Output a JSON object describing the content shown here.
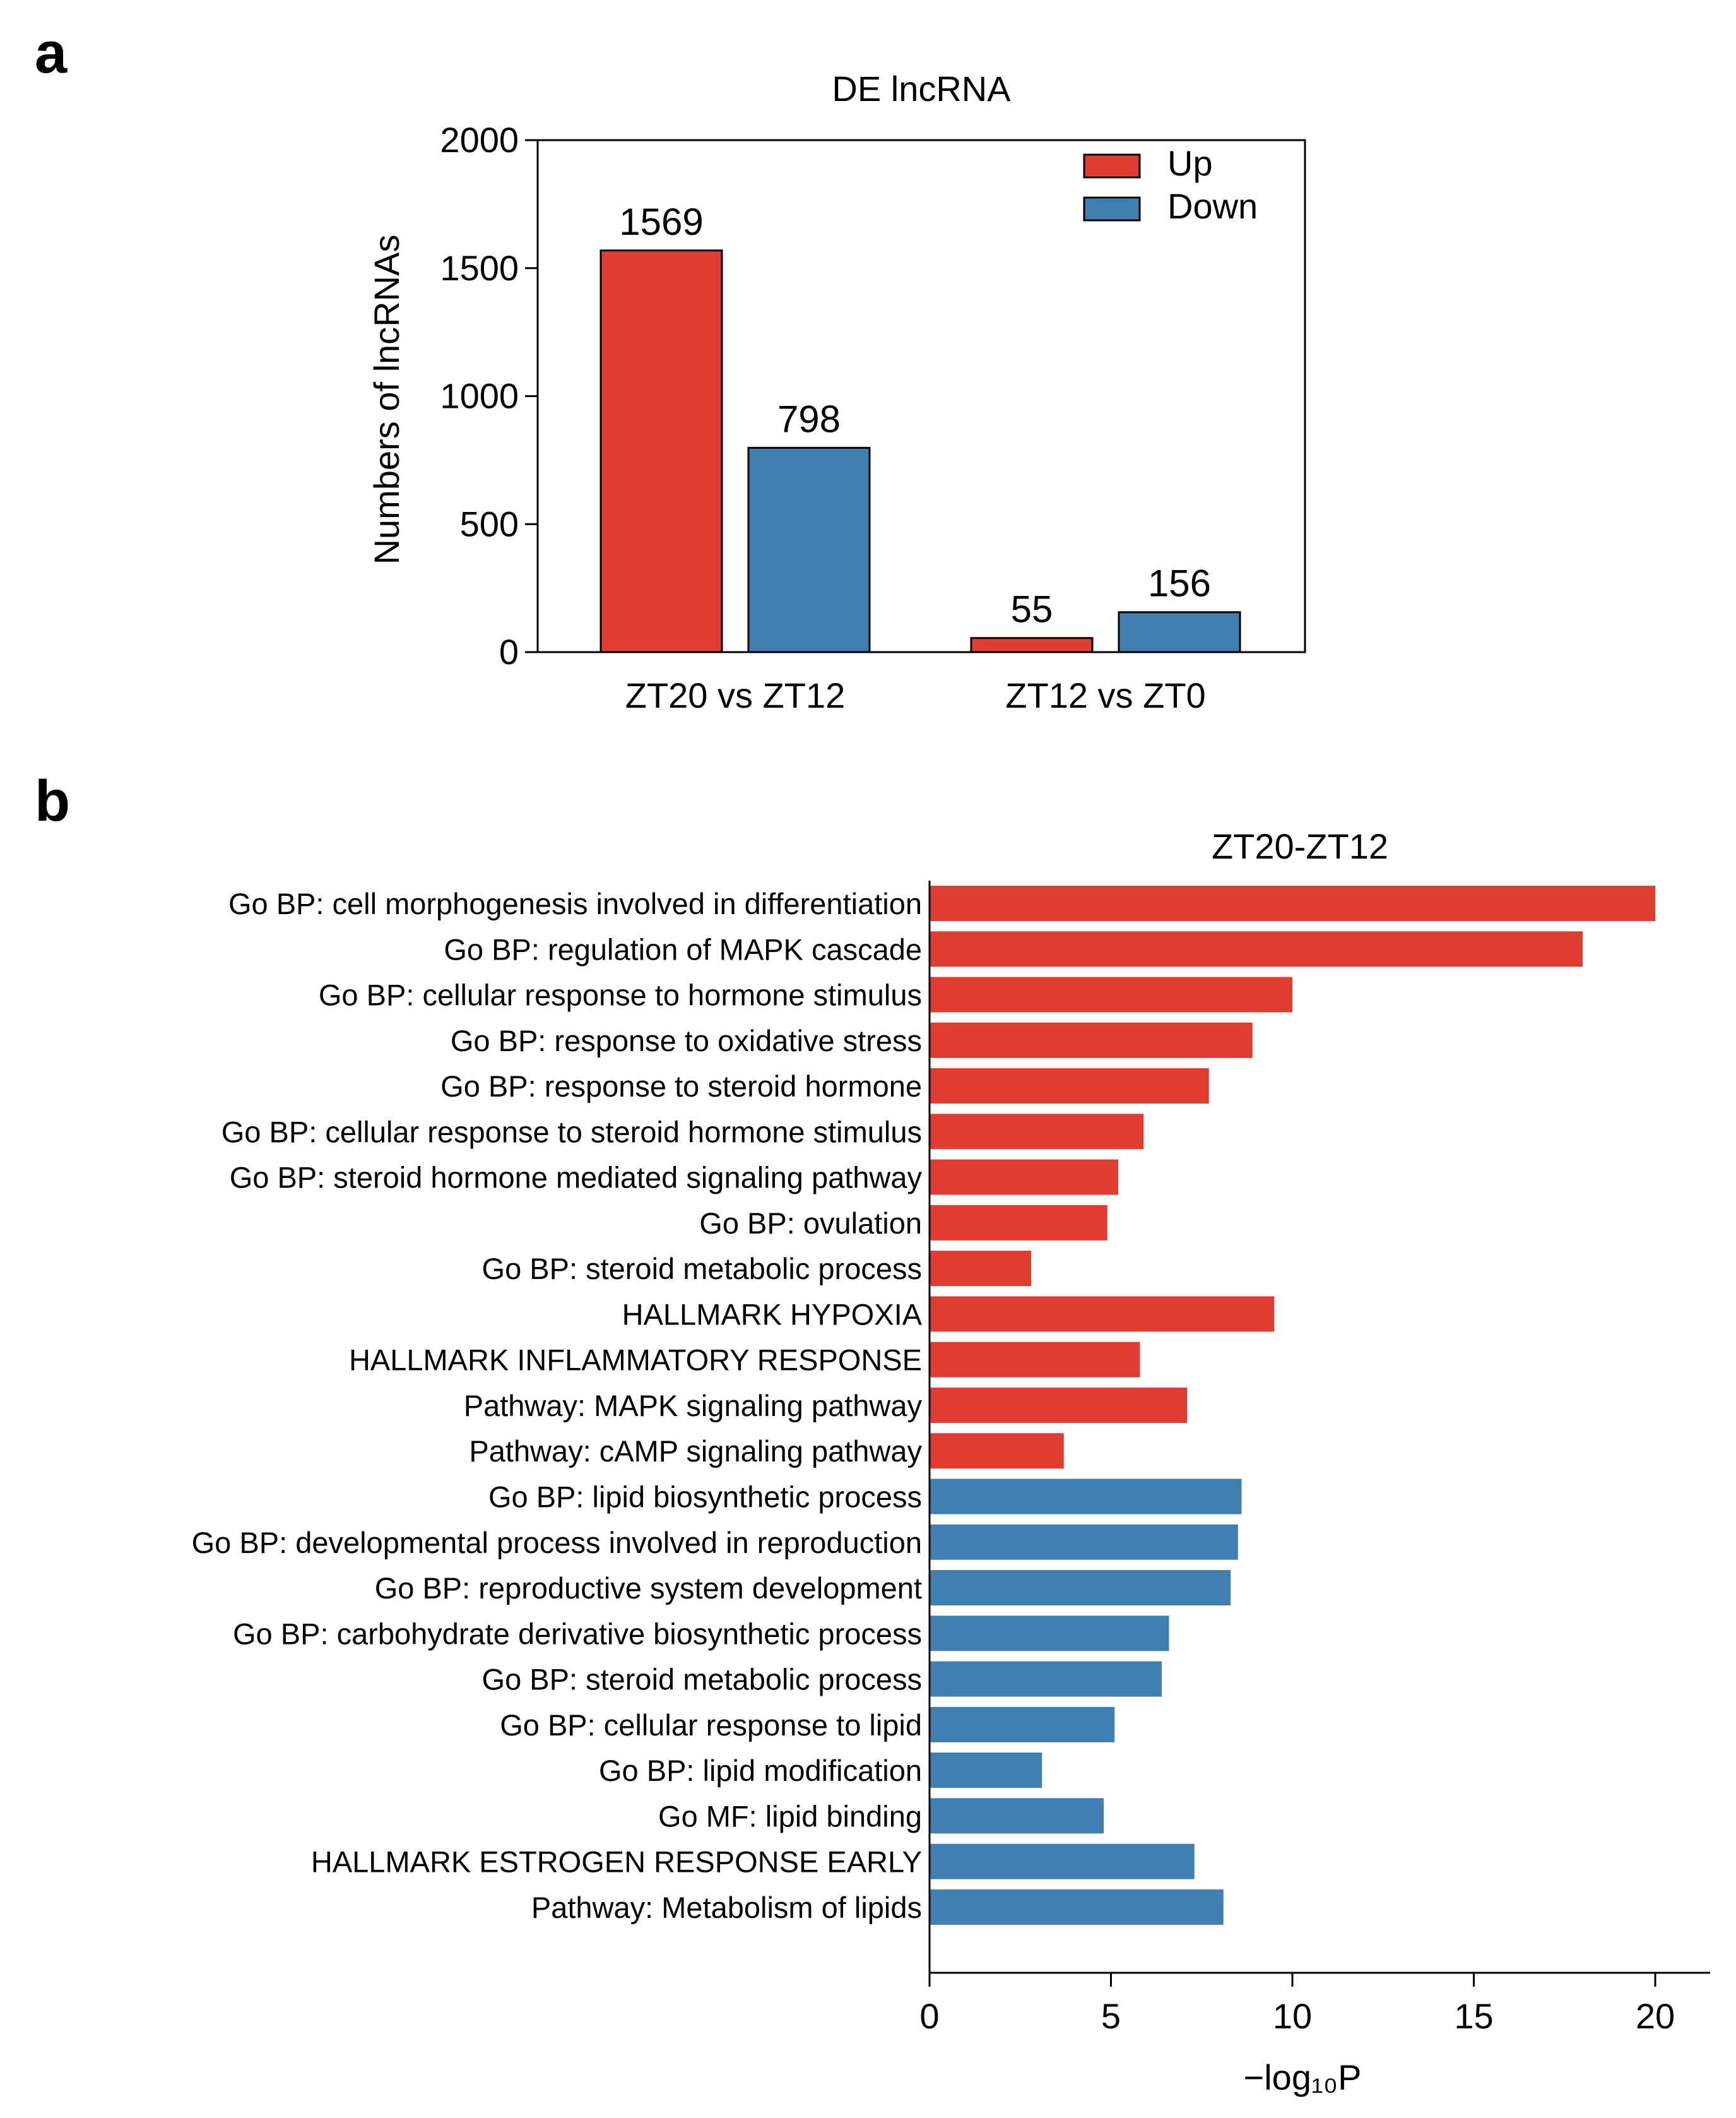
{
  "panels": {
    "a": {
      "letter": "a"
    },
    "b": {
      "letter": "b"
    }
  },
  "chart_data": [
    {
      "type": "bar",
      "title": "DE lncRNA",
      "xlabel": "",
      "ylabel": "Numbers of lncRNAs",
      "categories": [
        "ZT20 vs ZT12",
        "ZT12 vs ZT0"
      ],
      "series": [
        {
          "name": "Up",
          "color": "#e03c31",
          "values": [
            1569,
            55
          ]
        },
        {
          "name": "Down",
          "color": "#3f7fb2",
          "values": [
            798,
            156
          ]
        }
      ],
      "ylim": [
        0,
        2000
      ],
      "yticks": [
        "0",
        "500",
        "1000",
        "1500",
        "2000"
      ],
      "legend_position": "top-right",
      "grid": false
    },
    {
      "type": "bar",
      "orientation": "horizontal",
      "title": "ZT20-ZT12",
      "xlabel": "−log₁₀P",
      "xlim": [
        0,
        21
      ],
      "xticks": [
        "0",
        "5",
        "10",
        "15",
        "20"
      ],
      "grid": false,
      "colors": {
        "up": "#e03c31",
        "down": "#3f7fb2"
      },
      "terms": [
        {
          "label": "Go BP: cell morphogenesis involved in differentiation",
          "value": 20.0,
          "group": "up"
        },
        {
          "label": "Go BP: regulation of MAPK cascade",
          "value": 18.0,
          "group": "up"
        },
        {
          "label": "Go BP: cellular response to hormone stimulus",
          "value": 10.0,
          "group": "up"
        },
        {
          "label": "Go BP: response to oxidative stress",
          "value": 8.9,
          "group": "up"
        },
        {
          "label": "Go BP: response to steroid hormone",
          "value": 7.7,
          "group": "up"
        },
        {
          "label": "Go BP: cellular response to steroid hormone stimulus",
          "value": 5.9,
          "group": "up"
        },
        {
          "label": "Go BP: steroid hormone mediated signaling pathway",
          "value": 5.2,
          "group": "up"
        },
        {
          "label": "Go BP: ovulation",
          "value": 4.9,
          "group": "up"
        },
        {
          "label": "Go BP: steroid metabolic process",
          "value": 2.8,
          "group": "up"
        },
        {
          "label": "HALLMARK HYPOXIA",
          "value": 9.5,
          "group": "up"
        },
        {
          "label": "HALLMARK INFLAMMATORY RESPONSE",
          "value": 5.8,
          "group": "up"
        },
        {
          "label": "Pathway: MAPK signaling pathway",
          "value": 7.1,
          "group": "up"
        },
        {
          "label": "Pathway: cAMP signaling pathway",
          "value": 3.7,
          "group": "up"
        },
        {
          "label": "Go BP: lipid biosynthetic process",
          "value": 8.6,
          "group": "down"
        },
        {
          "label": "Go BP: developmental process involved in reproduction",
          "value": 8.5,
          "group": "down"
        },
        {
          "label": "Go BP: reproductive system development",
          "value": 8.3,
          "group": "down"
        },
        {
          "label": "Go BP: carbohydrate derivative biosynthetic process",
          "value": 6.6,
          "group": "down"
        },
        {
          "label": "Go BP: steroid metabolic process",
          "value": 6.4,
          "group": "down"
        },
        {
          "label": "Go BP: cellular response to lipid",
          "value": 5.1,
          "group": "down"
        },
        {
          "label": "Go BP: lipid modification",
          "value": 3.1,
          "group": "down"
        },
        {
          "label": "Go MF: lipid binding",
          "value": 4.8,
          "group": "down"
        },
        {
          "label": "HALLMARK ESTROGEN RESPONSE EARLY",
          "value": 7.3,
          "group": "down"
        },
        {
          "label": "Pathway: Metabolism of lipids",
          "value": 8.1,
          "group": "down"
        }
      ]
    }
  ]
}
